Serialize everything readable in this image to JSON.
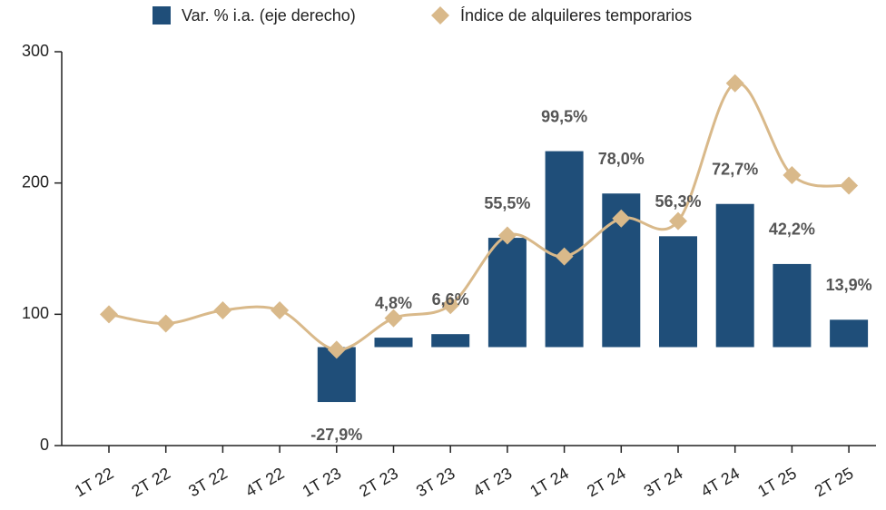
{
  "chart_data": {
    "type": "bar-line",
    "categories": [
      "1T 22",
      "2T 22",
      "3T 22",
      "4T 22",
      "1T 23",
      "2T 23",
      "3T 23",
      "4T 23",
      "1T 24",
      "2T 24",
      "3T 24",
      "4T 24",
      "1T 25",
      "2T 25"
    ],
    "series": [
      {
        "name": "Var. % i.a. (eje derecho)",
        "type": "bar",
        "axis": "y2",
        "color": "#1f4e79",
        "values": [
          null,
          null,
          null,
          null,
          -27.9,
          4.8,
          6.6,
          55.5,
          99.5,
          78.0,
          56.3,
          72.7,
          42.2,
          13.9
        ],
        "value_labels": [
          null,
          null,
          null,
          null,
          "-27,9%",
          "4,8%",
          "6,6%",
          "55,5%",
          "99,5%",
          "78,0%",
          "56,3%",
          "72,7%",
          "42,2%",
          "13,9%"
        ]
      },
      {
        "name": "Índice de alquileres temporarios",
        "type": "line",
        "axis": "y",
        "color": "#d9b98a",
        "values": [
          100,
          93,
          103,
          103,
          73,
          97,
          107,
          160,
          144,
          173,
          171,
          276,
          206,
          198
        ]
      }
    ],
    "ylim": [
      0,
      300
    ],
    "yticks": [
      0,
      100,
      200,
      300
    ],
    "y2lim": [
      -50,
      150
    ]
  }
}
